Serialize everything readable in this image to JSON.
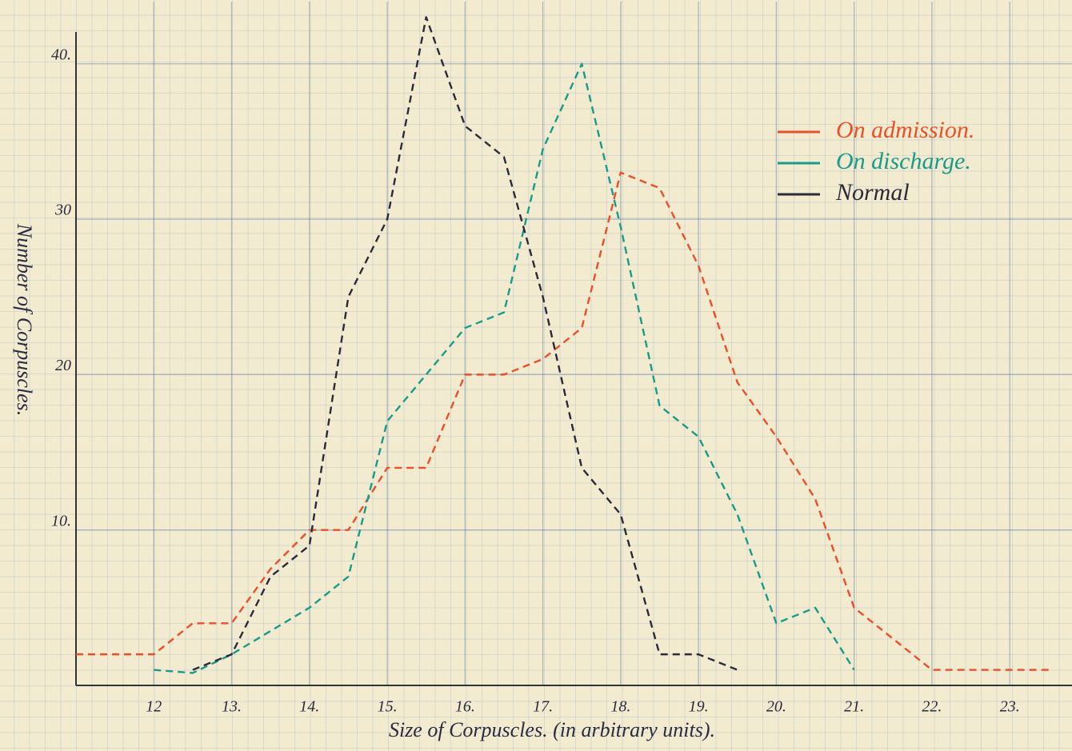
{
  "chart_data": {
    "type": "line",
    "xlabel": "Size of Corpuscles. (in arbitrary units).",
    "ylabel": "Number of Corpuscles.",
    "xlim": [
      11,
      23.8
    ],
    "ylim": [
      0,
      44
    ],
    "xticks": [
      12,
      {
        "value": 13,
        "label": "13."
      },
      {
        "value": 14,
        "label": "14."
      },
      {
        "value": 15,
        "label": "15."
      },
      {
        "value": 16,
        "label": "16."
      },
      {
        "value": 17,
        "label": "17."
      },
      {
        "value": 18,
        "label": "18."
      },
      {
        "value": 19,
        "label": "19."
      },
      {
        "value": 20,
        "label": "20."
      },
      {
        "value": 21,
        "label": "21."
      },
      {
        "value": 22,
        "label": "22."
      },
      {
        "value": 23,
        "label": "23."
      }
    ],
    "yticks": [
      {
        "value": 10,
        "label": "10."
      },
      20,
      30,
      {
        "value": 40,
        "label": "40."
      }
    ],
    "grid": true,
    "legend": "upper right",
    "series": [
      {
        "name": "On admission.",
        "color": "#e8502a",
        "x": [
          11,
          12,
          12.5,
          13,
          13.5,
          14,
          14.5,
          15,
          15.5,
          16,
          16.5,
          17,
          17.5,
          18,
          18.5,
          19,
          19.5,
          20,
          20.5,
          21,
          22,
          23.5
        ],
        "values": [
          2,
          2,
          4,
          4,
          7.5,
          10,
          10,
          14,
          14,
          20,
          20,
          21,
          23,
          33,
          32,
          27,
          19.5,
          16,
          12,
          5,
          1,
          1
        ]
      },
      {
        "name": "On discharge.",
        "color": "#1a9a8a",
        "x": [
          12,
          12.5,
          13,
          14,
          14.5,
          15,
          15.5,
          16,
          16.5,
          17,
          17.5,
          18,
          18.5,
          19,
          19.5,
          20,
          20.5,
          21
        ],
        "values": [
          1,
          0.8,
          2,
          5,
          7,
          17,
          20,
          23,
          24,
          34.5,
          40,
          29.5,
          18,
          16,
          11,
          4,
          5,
          1
        ]
      },
      {
        "name": "Normal",
        "color": "#2a2a3a",
        "x": [
          12.5,
          13,
          13.5,
          14,
          14.5,
          15,
          15.5,
          16,
          16.5,
          17,
          17.5,
          18,
          18.5,
          19,
          19.5
        ],
        "values": [
          1,
          2,
          7,
          9,
          25,
          30,
          43,
          36,
          34,
          25,
          14,
          11,
          2,
          2,
          1
        ]
      }
    ]
  }
}
